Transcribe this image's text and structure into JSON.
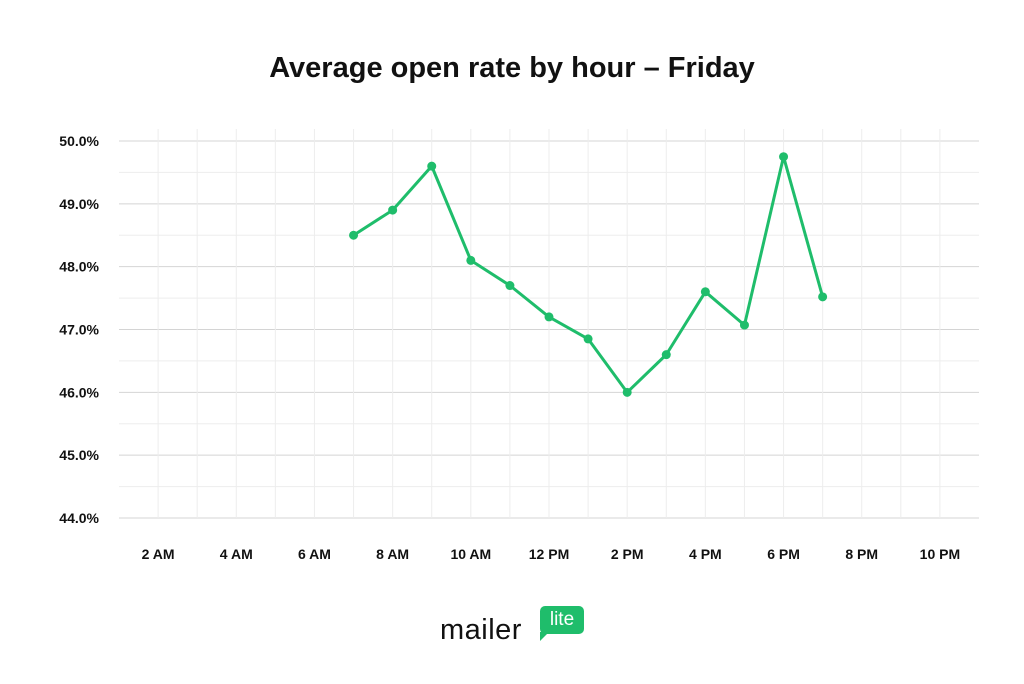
{
  "chart_data": {
    "type": "line",
    "title": "Average open rate by hour – Friday",
    "xlabel": "",
    "ylabel": "",
    "x_ticks": [
      "2 AM",
      "4 AM",
      "6 AM",
      "8 AM",
      "10 AM",
      "12 PM",
      "2 PM",
      "4 PM",
      "6 PM",
      "8 PM",
      "10 PM"
    ],
    "x_tick_hours": [
      2,
      4,
      6,
      8,
      10,
      12,
      14,
      16,
      18,
      20,
      22
    ],
    "y_ticks": [
      "44.0%",
      "45.0%",
      "46.0%",
      "47.0%",
      "48.0%",
      "49.0%",
      "50.0%"
    ],
    "ylim": [
      44,
      50
    ],
    "xlim_hours": [
      1,
      23
    ],
    "grid": true,
    "series": [
      {
        "hours": [
          7,
          8,
          9,
          10,
          11,
          12,
          13,
          14,
          15,
          16,
          17,
          18,
          19
        ],
        "values": [
          48.5,
          48.9,
          49.6,
          48.1,
          47.7,
          47.2,
          46.85,
          46.0,
          46.6,
          47.6,
          47.07,
          49.75,
          47.52
        ],
        "color": "#1fbd6b"
      }
    ]
  },
  "brand": {
    "word": "mailer",
    "badge": "lite",
    "color": "#1fbd6b"
  }
}
